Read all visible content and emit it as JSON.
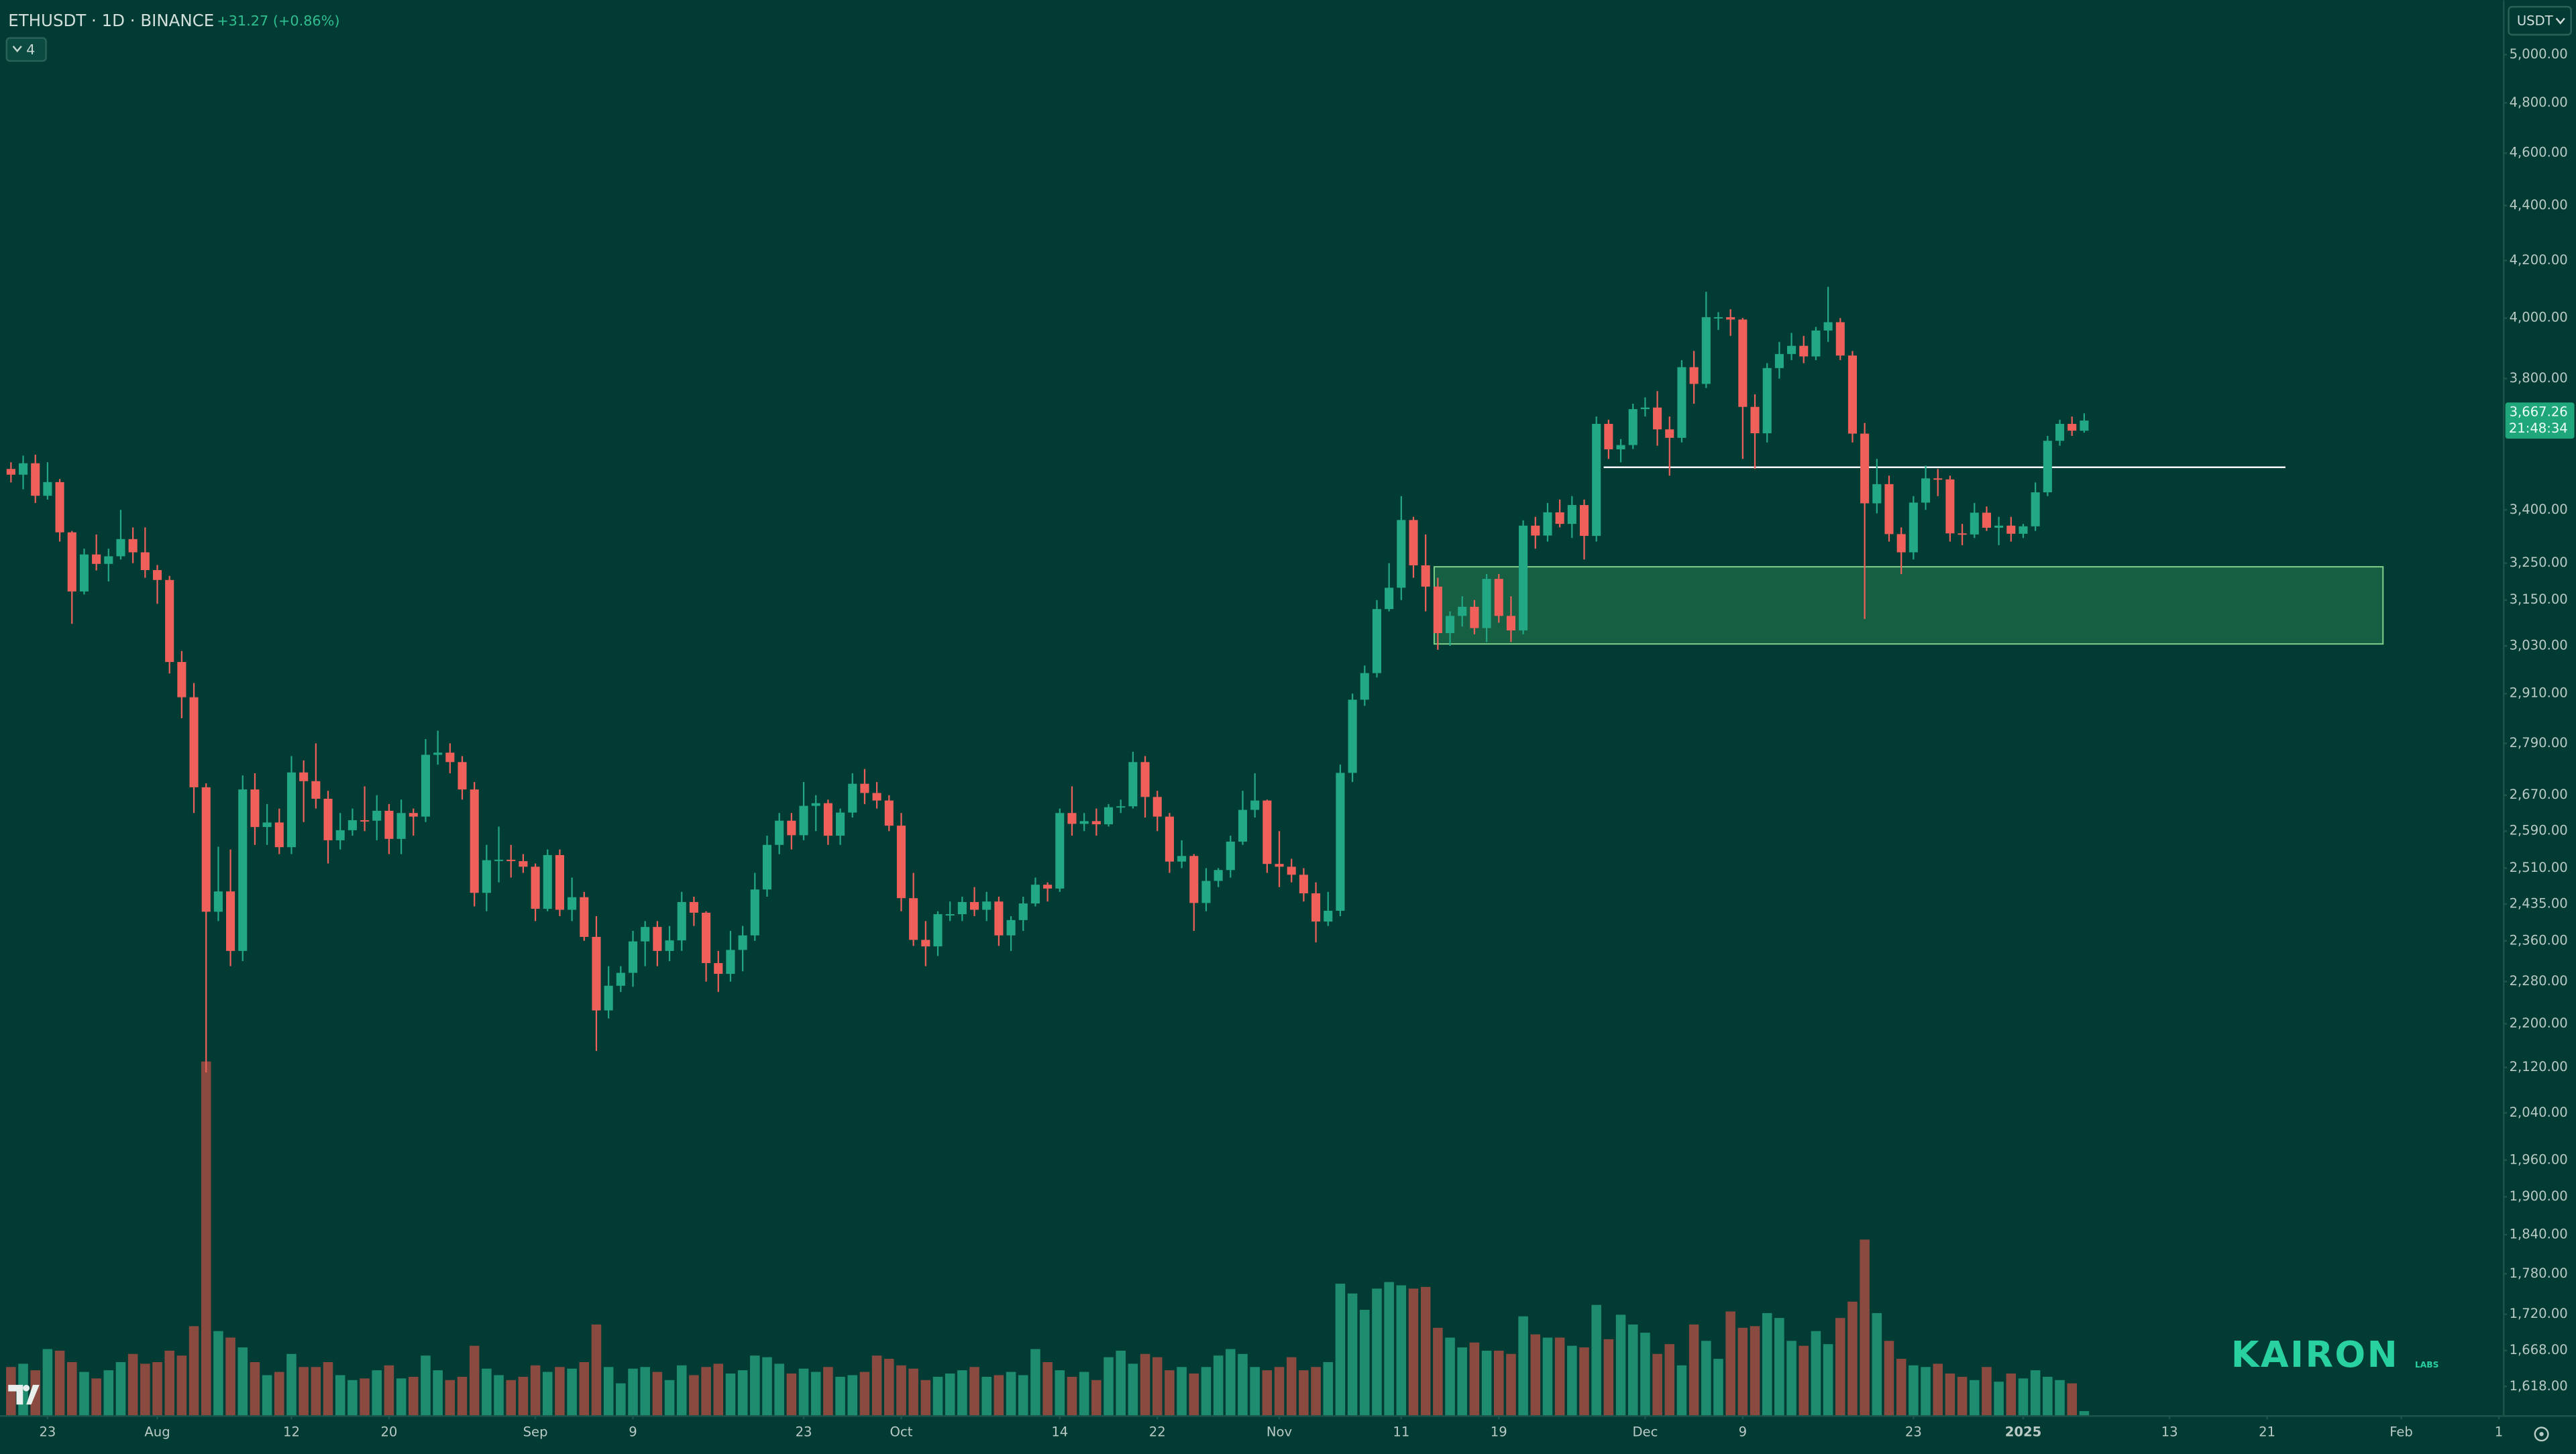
{
  "header": {
    "symbol": "ETHUSDT · 1D · BINANCE",
    "change": "+31.27 (+0.86%)",
    "indicator_count": 4,
    "currency": "USDT",
    "countdown": "21:48:34",
    "logo": "KAIRON",
    "logo_sub": "LABS"
  },
  "chart_data": {
    "type": "candlestick",
    "log_scale": true,
    "grid": false,
    "up_color": "#22a884",
    "down_color": "#f0605a",
    "volume_up_color": "#1e8c6e",
    "volume_down_color": "#8a4a40",
    "ohlc": [
      [
        3520,
        3540,
        3480,
        3503
      ],
      [
        3503,
        3560,
        3460,
        3537
      ],
      [
        3537,
        3563,
        3420,
        3441
      ],
      [
        3441,
        3540,
        3430,
        3481
      ],
      [
        3481,
        3490,
        3310,
        3336
      ],
      [
        3336,
        3340,
        3087,
        3173
      ],
      [
        3173,
        3290,
        3165,
        3274
      ],
      [
        3274,
        3330,
        3230,
        3248
      ],
      [
        3248,
        3290,
        3200,
        3269
      ],
      [
        3269,
        3400,
        3260,
        3317
      ],
      [
        3317,
        3350,
        3250,
        3280
      ],
      [
        3280,
        3350,
        3210,
        3231
      ],
      [
        3231,
        3245,
        3140,
        3204
      ],
      [
        3204,
        3215,
        2960,
        2989
      ],
      [
        2989,
        3017,
        2850,
        2901
      ],
      [
        2901,
        2936,
        2630,
        2688
      ],
      [
        2688,
        2697,
        2111,
        2419
      ],
      [
        2419,
        2556,
        2400,
        2461
      ],
      [
        2461,
        2550,
        2310,
        2340
      ],
      [
        2340,
        2715,
        2320,
        2683
      ],
      [
        2683,
        2720,
        2560,
        2599
      ],
      [
        2599,
        2650,
        2560,
        2609
      ],
      [
        2609,
        2640,
        2540,
        2555
      ],
      [
        2555,
        2760,
        2540,
        2722
      ],
      [
        2722,
        2750,
        2610,
        2702
      ],
      [
        2702,
        2790,
        2640,
        2662
      ],
      [
        2662,
        2680,
        2520,
        2570
      ],
      [
        2570,
        2630,
        2550,
        2592
      ],
      [
        2592,
        2640,
        2580,
        2614
      ],
      [
        2614,
        2690,
        2590,
        2613
      ],
      [
        2613,
        2670,
        2570,
        2635
      ],
      [
        2635,
        2650,
        2540,
        2573
      ],
      [
        2573,
        2660,
        2540,
        2630
      ],
      [
        2630,
        2640,
        2580,
        2622
      ],
      [
        2622,
        2800,
        2610,
        2763
      ],
      [
        2763,
        2820,
        2740,
        2768
      ],
      [
        2768,
        2790,
        2720,
        2746
      ],
      [
        2746,
        2760,
        2660,
        2683
      ],
      [
        2683,
        2700,
        2430,
        2458
      ],
      [
        2458,
        2560,
        2420,
        2527
      ],
      [
        2527,
        2600,
        2480,
        2528
      ],
      [
        2528,
        2560,
        2490,
        2525
      ],
      [
        2525,
        2540,
        2500,
        2513
      ],
      [
        2513,
        2520,
        2400,
        2425
      ],
      [
        2425,
        2550,
        2420,
        2538
      ],
      [
        2538,
        2550,
        2410,
        2423
      ],
      [
        2423,
        2490,
        2400,
        2449
      ],
      [
        2449,
        2460,
        2360,
        2368
      ],
      [
        2368,
        2410,
        2150,
        2225
      ],
      [
        2225,
        2310,
        2210,
        2272
      ],
      [
        2272,
        2310,
        2260,
        2297
      ],
      [
        2297,
        2380,
        2270,
        2359
      ],
      [
        2359,
        2400,
        2310,
        2388
      ],
      [
        2388,
        2400,
        2310,
        2340
      ],
      [
        2340,
        2390,
        2320,
        2361
      ],
      [
        2361,
        2460,
        2340,
        2439
      ],
      [
        2439,
        2450,
        2390,
        2417
      ],
      [
        2417,
        2420,
        2280,
        2316
      ],
      [
        2316,
        2340,
        2260,
        2295
      ],
      [
        2295,
        2380,
        2280,
        2342
      ],
      [
        2342,
        2390,
        2300,
        2371
      ],
      [
        2371,
        2500,
        2360,
        2465
      ],
      [
        2465,
        2580,
        2450,
        2560
      ],
      [
        2560,
        2630,
        2540,
        2613
      ],
      [
        2613,
        2630,
        2550,
        2581
      ],
      [
        2581,
        2700,
        2570,
        2646
      ],
      [
        2646,
        2670,
        2590,
        2652
      ],
      [
        2652,
        2660,
        2560,
        2580
      ],
      [
        2580,
        2640,
        2560,
        2631
      ],
      [
        2631,
        2720,
        2620,
        2696
      ],
      [
        2696,
        2730,
        2650,
        2675
      ],
      [
        2675,
        2700,
        2640,
        2658
      ],
      [
        2658,
        2670,
        2590,
        2602
      ],
      [
        2602,
        2630,
        2420,
        2447
      ],
      [
        2447,
        2500,
        2350,
        2362
      ],
      [
        2362,
        2400,
        2310,
        2349
      ],
      [
        2349,
        2420,
        2330,
        2414
      ],
      [
        2414,
        2440,
        2400,
        2414
      ],
      [
        2414,
        2450,
        2400,
        2439
      ],
      [
        2439,
        2470,
        2410,
        2423
      ],
      [
        2423,
        2460,
        2400,
        2440
      ],
      [
        2440,
        2450,
        2350,
        2371
      ],
      [
        2371,
        2410,
        2340,
        2402
      ],
      [
        2402,
        2450,
        2380,
        2436
      ],
      [
        2436,
        2490,
        2430,
        2475
      ],
      [
        2475,
        2480,
        2440,
        2467
      ],
      [
        2467,
        2640,
        2460,
        2630
      ],
      [
        2630,
        2690,
        2580,
        2606
      ],
      [
        2606,
        2630,
        2590,
        2612
      ],
      [
        2612,
        2640,
        2580,
        2605
      ],
      [
        2605,
        2650,
        2600,
        2643
      ],
      [
        2643,
        2660,
        2630,
        2645
      ],
      [
        2645,
        2770,
        2640,
        2746
      ],
      [
        2746,
        2760,
        2620,
        2666
      ],
      [
        2666,
        2680,
        2590,
        2622
      ],
      [
        2622,
        2630,
        2500,
        2524
      ],
      [
        2524,
        2570,
        2510,
        2536
      ],
      [
        2536,
        2540,
        2380,
        2437
      ],
      [
        2437,
        2510,
        2420,
        2483
      ],
      [
        2483,
        2510,
        2470,
        2506
      ],
      [
        2506,
        2580,
        2490,
        2567
      ],
      [
        2567,
        2680,
        2560,
        2637
      ],
      [
        2637,
        2720,
        2620,
        2658
      ],
      [
        2658,
        2660,
        2500,
        2519
      ],
      [
        2519,
        2590,
        2470,
        2513
      ],
      [
        2513,
        2530,
        2480,
        2496
      ],
      [
        2496,
        2510,
        2440,
        2457
      ],
      [
        2457,
        2480,
        2357,
        2399
      ],
      [
        2399,
        2460,
        2390,
        2421
      ],
      [
        2421,
        2740,
        2410,
        2721
      ],
      [
        2721,
        2910,
        2700,
        2895
      ],
      [
        2895,
        2980,
        2880,
        2961
      ],
      [
        2961,
        3150,
        2950,
        3126
      ],
      [
        3126,
        3250,
        3120,
        3183
      ],
      [
        3183,
        3440,
        3150,
        3371
      ],
      [
        3371,
        3380,
        3210,
        3244
      ],
      [
        3244,
        3330,
        3120,
        3186
      ],
      [
        3186,
        3210,
        3020,
        3063
      ],
      [
        3063,
        3120,
        3030,
        3108
      ],
      [
        3108,
        3160,
        3080,
        3132
      ],
      [
        3132,
        3150,
        3060,
        3076
      ],
      [
        3076,
        3220,
        3040,
        3207
      ],
      [
        3207,
        3220,
        3090,
        3108
      ],
      [
        3108,
        3160,
        3040,
        3070
      ],
      [
        3070,
        3370,
        3060,
        3355
      ],
      [
        3355,
        3380,
        3290,
        3327
      ],
      [
        3327,
        3420,
        3310,
        3393
      ],
      [
        3393,
        3430,
        3350,
        3360
      ],
      [
        3360,
        3440,
        3320,
        3414
      ],
      [
        3414,
        3430,
        3260,
        3326
      ],
      [
        3326,
        3680,
        3310,
        3657
      ],
      [
        3657,
        3670,
        3550,
        3579
      ],
      [
        3579,
        3610,
        3540,
        3592
      ],
      [
        3592,
        3720,
        3580,
        3703
      ],
      [
        3703,
        3740,
        3680,
        3708
      ],
      [
        3708,
        3760,
        3590,
        3640
      ],
      [
        3640,
        3680,
        3500,
        3614
      ],
      [
        3614,
        3860,
        3600,
        3837
      ],
      [
        3837,
        3890,
        3720,
        3783
      ],
      [
        3783,
        4090,
        3770,
        4003
      ],
      [
        4003,
        4020,
        3960,
        4003
      ],
      [
        4003,
        4030,
        3940,
        3995
      ],
      [
        3995,
        4000,
        3550,
        3710
      ],
      [
        3710,
        3750,
        3520,
        3628
      ],
      [
        3628,
        3850,
        3600,
        3834
      ],
      [
        3834,
        3920,
        3800,
        3880
      ],
      [
        3880,
        3950,
        3860,
        3907
      ],
      [
        3907,
        3940,
        3850,
        3872
      ],
      [
        3872,
        3970,
        3860,
        3958
      ],
      [
        3958,
        4107,
        3920,
        3986
      ],
      [
        3986,
        4000,
        3860,
        3875
      ],
      [
        3875,
        3890,
        3600,
        3627
      ],
      [
        3627,
        3660,
        3100,
        3419
      ],
      [
        3419,
        3550,
        3390,
        3475
      ],
      [
        3475,
        3500,
        3310,
        3331
      ],
      [
        3331,
        3350,
        3220,
        3280
      ],
      [
        3280,
        3440,
        3260,
        3421
      ],
      [
        3421,
        3530,
        3400,
        3492
      ],
      [
        3492,
        3520,
        3440,
        3489
      ],
      [
        3489,
        3500,
        3310,
        3333
      ],
      [
        3333,
        3360,
        3300,
        3330
      ],
      [
        3330,
        3420,
        3320,
        3392
      ],
      [
        3392,
        3410,
        3340,
        3349
      ],
      [
        3349,
        3380,
        3300,
        3355
      ],
      [
        3355,
        3380,
        3310,
        3332
      ],
      [
        3332,
        3360,
        3320,
        3353
      ],
      [
        3353,
        3480,
        3340,
        3451
      ],
      [
        3451,
        3620,
        3440,
        3605
      ],
      [
        3605,
        3670,
        3590,
        3657
      ],
      [
        3657,
        3680,
        3620,
        3635.99
      ],
      [
        3635.99,
        3690,
        3630,
        3667.26
      ]
    ],
    "volume": [
      300,
      320,
      280,
      410,
      400,
      330,
      270,
      230,
      280,
      330,
      380,
      320,
      330,
      400,
      370,
      550,
      2170,
      520,
      480,
      420,
      330,
      250,
      270,
      380,
      300,
      300,
      330,
      250,
      220,
      230,
      280,
      310,
      230,
      240,
      370,
      280,
      220,
      240,
      430,
      290,
      250,
      220,
      240,
      310,
      270,
      300,
      290,
      330,
      560,
      300,
      200,
      290,
      300,
      270,
      220,
      310,
      250,
      300,
      320,
      260,
      280,
      370,
      360,
      320,
      260,
      290,
      270,
      300,
      240,
      250,
      270,
      370,
      350,
      310,
      290,
      220,
      240,
      260,
      280,
      300,
      240,
      250,
      270,
      250,
      410,
      330,
      280,
      240,
      270,
      220,
      360,
      400,
      320,
      380,
      360,
      280,
      300,
      260,
      300,
      370,
      410,
      380,
      300,
      280,
      300,
      360,
      280,
      300,
      330,
      810,
      750,
      650,
      780,
      820,
      800,
      780,
      790,
      540,
      480,
      420,
      450,
      400,
      400,
      380,
      610,
      500,
      480,
      480,
      430,
      420,
      680,
      470,
      620,
      560,
      510,
      380,
      440,
      310,
      560,
      460,
      350,
      640,
      540,
      550,
      630,
      600,
      460,
      430,
      520,
      440,
      600,
      700,
      1080,
      630,
      460,
      350,
      310,
      300,
      320,
      260,
      240,
      220,
      300,
      210,
      260,
      230,
      280,
      240,
      220,
      200,
      30
    ],
    "vlim": [
      0,
      2600
    ],
    "ylim": [
      1578,
      5236
    ],
    "yticks": [
      {
        "value": 5000,
        "label": "5,000.00"
      },
      {
        "value": 4800,
        "label": "4,800.00"
      },
      {
        "value": 4600,
        "label": "4,600.00"
      },
      {
        "value": 4400,
        "label": "4,400.00"
      },
      {
        "value": 4200,
        "label": "4,200.00"
      },
      {
        "value": 4000,
        "label": "4,000.00"
      },
      {
        "value": 3800,
        "label": "3,800.00"
      },
      {
        "value": 3400,
        "label": "3,400.00"
      },
      {
        "value": 3250,
        "label": "3,250.00"
      },
      {
        "value": 3150,
        "label": "3,150.00"
      },
      {
        "value": 3030,
        "label": "3,030.00"
      },
      {
        "value": 2910,
        "label": "2,910.00"
      },
      {
        "value": 2790,
        "label": "2,790.00"
      },
      {
        "value": 2670,
        "label": "2,670.00"
      },
      {
        "value": 2590,
        "label": "2,590.00"
      },
      {
        "value": 2510,
        "label": "2,510.00"
      },
      {
        "value": 2435,
        "label": "2,435.00"
      },
      {
        "value": 2360,
        "label": "2,360.00"
      },
      {
        "value": 2280,
        "label": "2,280.00"
      },
      {
        "value": 2200,
        "label": "2,200.00"
      },
      {
        "value": 2120,
        "label": "2,120.00"
      },
      {
        "value": 2040,
        "label": "2,040.00"
      },
      {
        "value": 1960,
        "label": "1,960.00"
      },
      {
        "value": 1900,
        "label": "1,900.00"
      },
      {
        "value": 1840,
        "label": "1,840.00"
      },
      {
        "value": 1780,
        "label": "1,780.00"
      },
      {
        "value": 1720,
        "label": "1,720.00"
      },
      {
        "value": 1668,
        "label": "1,668.00"
      },
      {
        "value": 1618,
        "label": "1,618.00"
      }
    ],
    "xlim": [
      -0.9,
      204.4
    ],
    "xticks": [
      {
        "value": 3,
        "label": "23"
      },
      {
        "value": 12,
        "label": "Aug"
      },
      {
        "value": 23,
        "label": "12"
      },
      {
        "value": 31,
        "label": "20"
      },
      {
        "value": 43,
        "label": "Sep"
      },
      {
        "value": 51,
        "label": "9"
      },
      {
        "value": 65,
        "label": "23"
      },
      {
        "value": 73,
        "label": "Oct"
      },
      {
        "value": 86,
        "label": "14"
      },
      {
        "value": 94,
        "label": "22"
      },
      {
        "value": 104,
        "label": "Nov"
      },
      {
        "value": 114,
        "label": "11"
      },
      {
        "value": 122,
        "label": "19"
      },
      {
        "value": 134,
        "label": "Dec"
      },
      {
        "value": 142,
        "label": "9"
      },
      {
        "value": 156,
        "label": "23"
      },
      {
        "value": 165,
        "label": "2025"
      },
      {
        "value": 177,
        "label": "13"
      },
      {
        "value": 185,
        "label": "21"
      },
      {
        "value": 196,
        "label": "Feb"
      },
      {
        "value": 204,
        "label": "1"
      }
    ],
    "last_price": {
      "value": 3667.26,
      "label": "3,667.26"
    },
    "zone": {
      "xlim": [
        116.7,
        194.5
      ],
      "ylim": [
        3035,
        3240
      ]
    },
    "level": {
      "y": 3525,
      "xlim": [
        130.6,
        186.5
      ]
    }
  }
}
